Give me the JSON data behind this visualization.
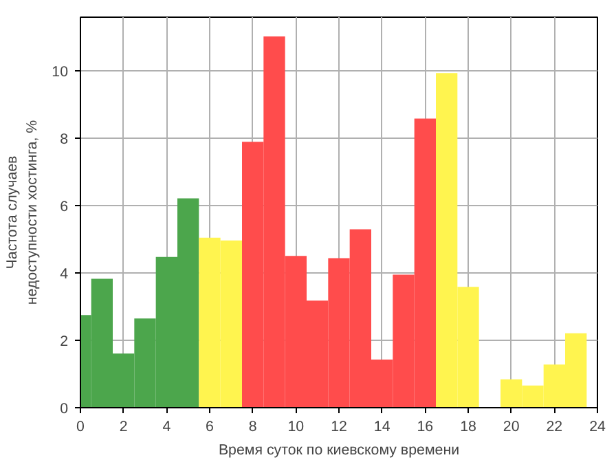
{
  "chart_data": {
    "type": "histogram",
    "xlabel": "Время суток по киевскому времени",
    "ylabel": "Частота случаев\nнедоступности хостинга, %",
    "bins": [
      0,
      0.5,
      1.5,
      2.5,
      3.5,
      4.5,
      5.5,
      6.5,
      7.5,
      8.5,
      9.5,
      10.5,
      11.5,
      12.5,
      13.5,
      14.5,
      15.5,
      16.5,
      17.5,
      18.5,
      19.5,
      20.5,
      21.5,
      22.5,
      23.5
    ],
    "values": [
      2.75,
      3.83,
      1.61,
      2.65,
      4.48,
      6.22,
      5.05,
      4.97,
      7.9,
      11.03,
      4.51,
      3.18,
      4.44,
      5.3,
      1.43,
      3.95,
      8.59,
      9.94,
      3.59,
      0,
      0.84,
      0.66,
      1.28,
      2.21
    ],
    "colors": [
      "#4ca64c",
      "#4ca64c",
      "#4ca64c",
      "#4ca64c",
      "#4ca64c",
      "#4ca64c",
      "#fff44f",
      "#fff44f",
      "#ff4c4c",
      "#ff4c4c",
      "#ff4c4c",
      "#ff4c4c",
      "#ff4c4c",
      "#ff4c4c",
      "#ff4c4c",
      "#ff4c4c",
      "#ff4c4c",
      "#fff44f",
      "#fff44f",
      "#fff44f",
      "#fff44f",
      "#fff44f",
      "#fff44f",
      "#fff44f"
    ],
    "xlim": [
      0,
      24
    ],
    "ylim": [
      0,
      11.6
    ],
    "xticks": [
      0,
      2,
      4,
      6,
      8,
      10,
      12,
      14,
      16,
      18,
      20,
      22,
      24
    ],
    "yticks": [
      0,
      2,
      4,
      6,
      8,
      10
    ],
    "grid": true
  }
}
